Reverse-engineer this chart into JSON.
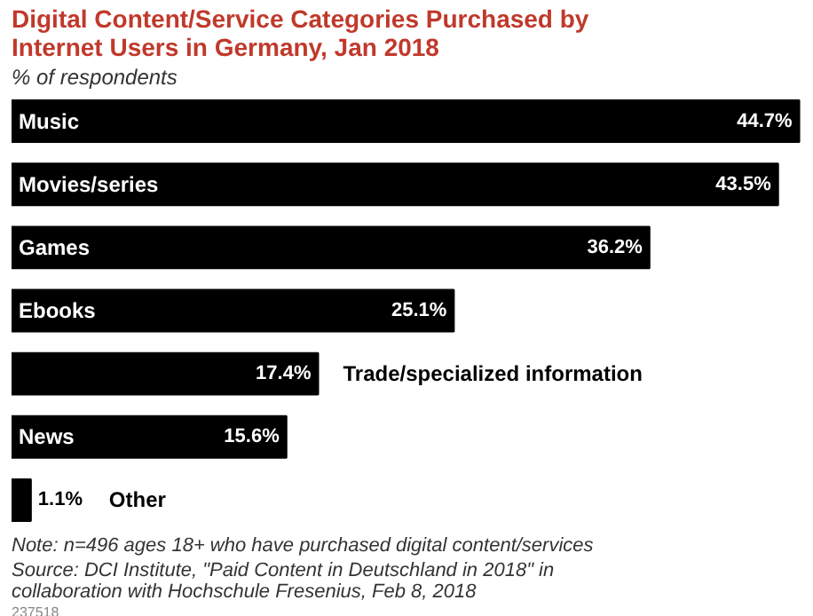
{
  "chart_data": {
    "type": "bar",
    "orientation": "horizontal",
    "title": "Digital Content/Service Categories Purchased by Internet Users in Germany, Jan 2018",
    "subtitle": "% of respondents",
    "categories": [
      "Music",
      "Movies/series",
      "Games",
      "Ebooks",
      "Trade/specialized information",
      "News",
      "Other"
    ],
    "values": [
      44.7,
      43.5,
      36.2,
      25.1,
      17.4,
      15.6,
      1.1
    ],
    "value_labels": [
      "44.7%",
      "43.5%",
      "36.2%",
      "25.1%",
      "17.4%",
      "15.6%",
      "1.1%"
    ],
    "color": "#000000",
    "annotations": [
      "Note: n=496 ages 18+ who have purchased digital content/services",
      "Source: DCI Institute, \"Paid Content in Deutschland in 2018\" in collaboration with Hochschule Fresenius, Feb 8, 2018",
      "237518"
    ]
  }
}
